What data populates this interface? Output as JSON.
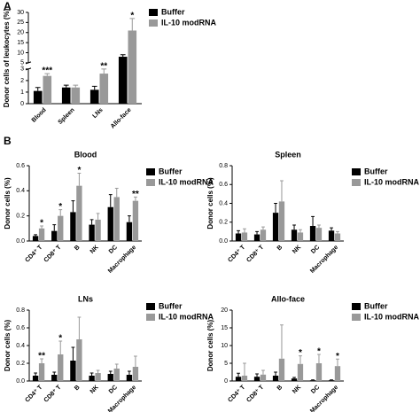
{
  "panel_labels": [
    "A",
    "B"
  ],
  "chart_data": [
    {
      "type": "bar",
      "ylabel": "Donor cells of leukocytes (%)",
      "categories": [
        "Blood",
        "Spleen",
        "LNs",
        "Allo-face"
      ],
      "ylim": [
        0,
        30
      ],
      "ybreak": [
        3,
        5
      ],
      "yticks": [
        0,
        1,
        2,
        3,
        5,
        10,
        15,
        20,
        25,
        30
      ],
      "series": [
        {
          "name": "Buffer",
          "color": "#000000",
          "values": [
            1.1,
            1.4,
            1.2,
            8
          ],
          "errors": [
            0.3,
            0.2,
            0.3,
            1
          ]
        },
        {
          "name": "IL-10 modRNA",
          "color": "#999999",
          "values": [
            2.4,
            1.4,
            2.6,
            21
          ],
          "errors": [
            0.2,
            0.2,
            0.4,
            6
          ],
          "significance": [
            "***",
            null,
            "**",
            "*"
          ]
        }
      ]
    },
    {
      "type": "bar",
      "title": "Blood",
      "ylabel": "Donor cells (%)",
      "categories": [
        "CD4⁺ T",
        "CD8⁺ T",
        "B",
        "NK",
        "DC",
        "Macrophage"
      ],
      "ylim": [
        0,
        0.6
      ],
      "yticks": [
        {
          "value": 0,
          "label": "0.0"
        },
        0.2,
        0.4,
        0.6
      ],
      "series": [
        {
          "name": "Buffer",
          "color": "#000000",
          "values": [
            0.04,
            0.08,
            0.23,
            0.13,
            0.27,
            0.15
          ],
          "errors": [
            0.01,
            0.05,
            0.09,
            0.04,
            0.1,
            0.05
          ]
        },
        {
          "name": "IL-10 modRNA",
          "color": "#999999",
          "values": [
            0.1,
            0.2,
            0.44,
            0.17,
            0.35,
            0.32
          ],
          "errors": [
            0.02,
            0.05,
            0.1,
            0.05,
            0.07,
            0.03
          ],
          "significance": [
            "*",
            "*",
            "*",
            null,
            null,
            "**"
          ]
        }
      ]
    },
    {
      "type": "bar",
      "title": "Spleen",
      "ylabel": "Donor cells (%)",
      "categories": [
        "CD4⁺ T",
        "CD8⁺ T",
        "B",
        "NK",
        "DC",
        "Macrophage"
      ],
      "ylim": [
        0,
        0.8
      ],
      "yticks": [
        {
          "value": 0,
          "label": "0.0"
        },
        0.2,
        0.4,
        0.6,
        0.8
      ],
      "series": [
        {
          "name": "Buffer",
          "color": "#000000",
          "values": [
            0.08,
            0.07,
            0.3,
            0.12,
            0.16,
            0.11
          ],
          "errors": [
            0.03,
            0.03,
            0.1,
            0.05,
            0.1,
            0.03
          ]
        },
        {
          "name": "IL-10 modRNA",
          "color": "#999999",
          "values": [
            0.09,
            0.12,
            0.42,
            0.09,
            0.14,
            0.08
          ],
          "errors": [
            0.04,
            0.03,
            0.22,
            0.03,
            0.03,
            0.02
          ]
        }
      ]
    },
    {
      "type": "bar",
      "title": "LNs",
      "ylabel": "Donor cells (%)",
      "categories": [
        "CD4⁺ T",
        "CD8⁺ T",
        "B",
        "NK",
        "DC",
        "Macrophage"
      ],
      "ylim": [
        0,
        0.8
      ],
      "yticks": [
        {
          "value": 0,
          "label": "0.0"
        },
        0.2,
        0.4,
        0.6,
        0.8
      ],
      "series": [
        {
          "name": "Buffer",
          "color": "#000000",
          "values": [
            0.06,
            0.07,
            0.23,
            0.06,
            0.08,
            0.07
          ],
          "errors": [
            0.03,
            0.03,
            0.15,
            0.03,
            0.03,
            0.04
          ]
        },
        {
          "name": "IL-10 modRNA",
          "color": "#999999",
          "values": [
            0.2,
            0.3,
            0.47,
            0.09,
            0.14,
            0.16
          ],
          "errors": [
            0.05,
            0.15,
            0.25,
            0.03,
            0.05,
            0.12
          ],
          "significance": [
            "**",
            "*",
            null,
            null,
            null,
            null
          ]
        }
      ]
    },
    {
      "type": "bar",
      "title": "Allo-face",
      "ylabel": "Donor cells (%)",
      "categories": [
        "CD4⁺ T",
        "CD8⁺ T",
        "B",
        "NK",
        "DC",
        "Macrophage"
      ],
      "ylim": [
        0,
        20
      ],
      "yticks": [
        0,
        5,
        10,
        15,
        20
      ],
      "series": [
        {
          "name": "Buffer",
          "color": "#000000",
          "values": [
            1.2,
            1.2,
            1.5,
            0.7,
            0.2,
            0.2
          ],
          "errors": [
            1,
            0.8,
            1,
            0.3,
            0.1,
            0.1
          ]
        },
        {
          "name": "IL-10 modRNA",
          "color": "#999999",
          "values": [
            1.5,
            1.8,
            6.3,
            4.8,
            5,
            4.2
          ],
          "errors": [
            3.5,
            1.2,
            9.5,
            2.3,
            2.5,
            2
          ],
          "significance": [
            null,
            null,
            null,
            "*",
            "*",
            "*"
          ]
        }
      ]
    }
  ]
}
